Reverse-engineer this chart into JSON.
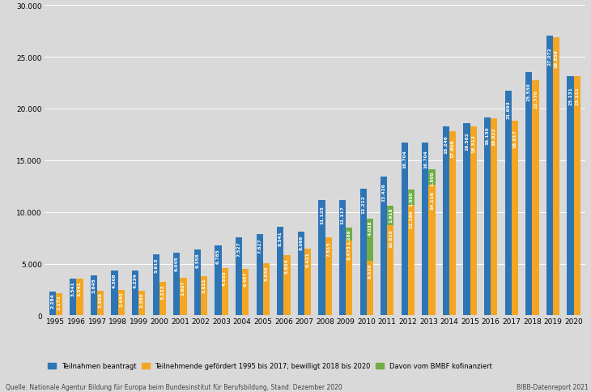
{
  "years": [
    1995,
    1996,
    1997,
    1998,
    1999,
    2000,
    2001,
    2002,
    2003,
    2004,
    2005,
    2006,
    2007,
    2008,
    2009,
    2010,
    2011,
    2012,
    2013,
    2014,
    2015,
    2016,
    2017,
    2018,
    2019,
    2020
  ],
  "beantragt": [
    2284,
    3541,
    3845,
    4308,
    4334,
    5915,
    6045,
    6358,
    6785,
    7527,
    7827,
    8541,
    8099,
    11125,
    11117,
    12212,
    13426,
    16704,
    16704,
    18246,
    18562,
    19130,
    21693,
    23530,
    27072,
    23131
  ],
  "gefoerdert": [
    2172,
    3541,
    2368,
    2440,
    2380,
    3222,
    3607,
    3821,
    4555,
    4497,
    5039,
    5834,
    6421,
    7515,
    8473,
    9320,
    10610,
    12169,
    14116,
    17808,
    18312,
    19022,
    18817,
    22770,
    26858,
    23111
  ],
  "bmbf": [
    0,
    0,
    0,
    0,
    0,
    0,
    0,
    0,
    0,
    0,
    0,
    0,
    0,
    0,
    1269,
    4038,
    1918,
    1500,
    1500,
    0,
    0,
    0,
    0,
    0,
    0,
    0
  ],
  "color_blue": "#2E75B6",
  "color_orange": "#F4A622",
  "color_green": "#70AD47",
  "bg_color": "#D9D9D9",
  "ylim": [
    0,
    30000
  ],
  "yticks": [
    0,
    5000,
    10000,
    15000,
    20000,
    25000,
    30000
  ],
  "ytick_labels": [
    "0",
    "5.000",
    "10.000",
    "15.000",
    "20.000",
    "25.000",
    "30.000"
  ],
  "legend_blue": "Teilnahmen beantragt",
  "legend_orange": "Teilnehmende gefördert 1995 bis 2017; bewilligt 2018 bis 2020",
  "legend_green": "Davon vom BMBF kofinanziert",
  "source_text": "Quelle: Nationale Agentur Bildung für Europa beim Bundesinstitut für Berufsbildung, Stand: Dezember 2020",
  "bibb_text": "BIBB-Datenreport 2021",
  "bar_width": 0.32,
  "label_fontsize": 4.2,
  "tick_fontsize": 6.5
}
